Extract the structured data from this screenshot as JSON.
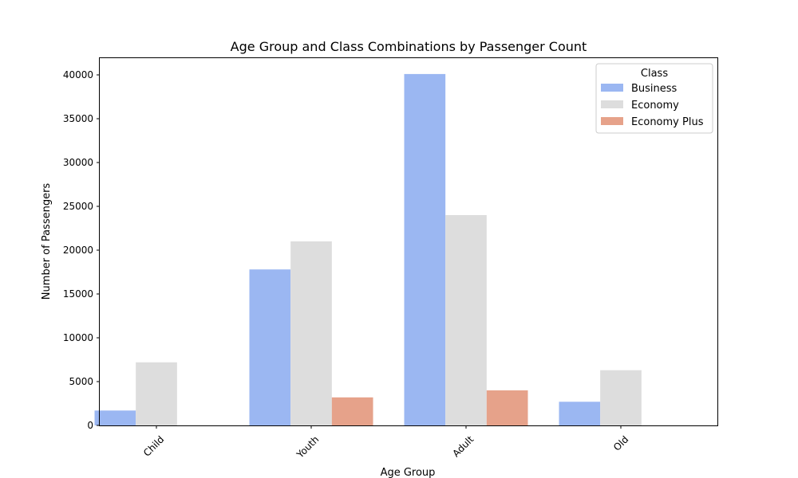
{
  "chart_data": {
    "type": "bar",
    "title": "Age Group and Class Combinations by Passenger Count",
    "xlabel": "Age Group",
    "ylabel": "Number of Passengers",
    "categories": [
      "Child",
      "Youth",
      "Adult",
      "Old"
    ],
    "series": [
      {
        "name": "Business",
        "color": "#9bb7f2",
        "values": [
          1700,
          17800,
          40100,
          2700
        ]
      },
      {
        "name": "Economy",
        "color": "#dddddd",
        "values": [
          7200,
          21000,
          24000,
          6300
        ]
      },
      {
        "name": "Economy Plus",
        "color": "#e6a28a",
        "values": [
          0,
          3200,
          4000,
          0
        ]
      }
    ],
    "ylim": [
      0,
      42000
    ],
    "yticks": [
      0,
      5000,
      10000,
      15000,
      20000,
      25000,
      30000,
      35000,
      40000
    ],
    "legend": {
      "title": "Class",
      "position": "top-right"
    },
    "grid": false
  }
}
